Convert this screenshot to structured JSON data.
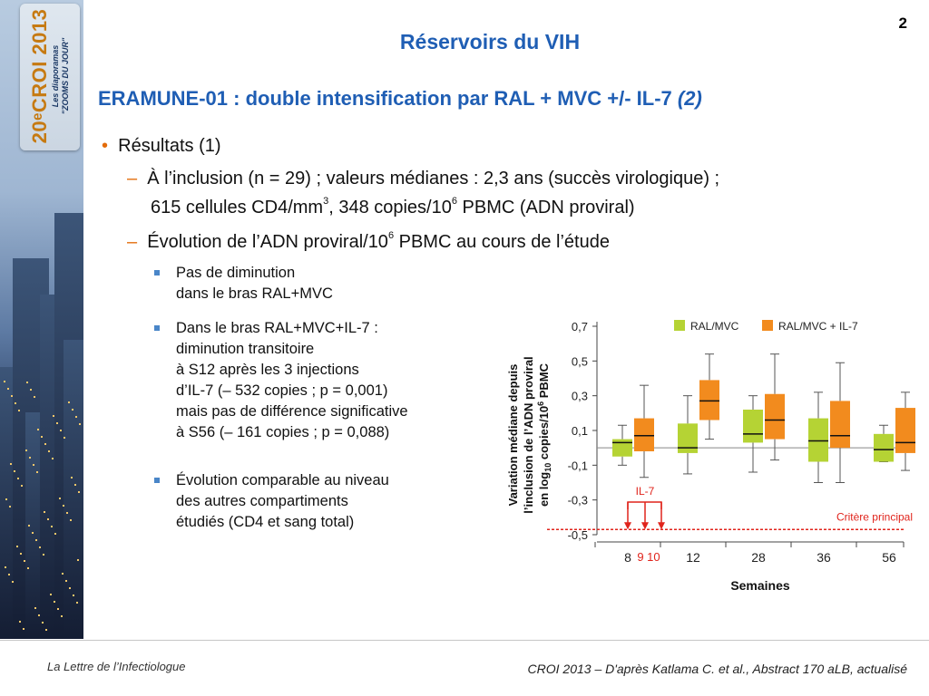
{
  "banner": {
    "line1": "20ᵉCROI 2013",
    "line2": "Les diaporamas",
    "line3": "\"ZOOMS DU JOUR\""
  },
  "slide_number": "2",
  "title": "Réservoirs du VIH",
  "subtitle": {
    "main": "ERAMUNE-01 : double intensification par RAL + MVC +/- IL-7",
    "ref": "(2)"
  },
  "bullets": {
    "level1": "Résultats (1)",
    "item1_line1": "À l’inclusion (n = 29) ; valeurs médianes : 2,3 ans (succès virologique) ;",
    "item1_line2_a": "615 cellules CD4/mm",
    "item1_line2_sup1": "3",
    "item1_line2_b": ", 348 copies/10",
    "item1_line2_sup2": "6",
    "item1_line2_c": " PBMC (ADN proviral)",
    "item2_a": "Évolution de l’ADN proviral/10",
    "item2_sup": "6",
    "item2_b": " PBMC au cours de l’étude",
    "sub1": [
      "Pas de diminution",
      "dans le bras RAL+MVC"
    ],
    "sub2": [
      "Dans le bras RAL+MVC+IL-7 :",
      "diminution transitoire",
      "à S12 après les 3 injections",
      "d’IL-7 (– 532 copies ; p = 0,001)",
      "mais pas de différence significative",
      "à S56 (– 161 copies ; p = 0,088)"
    ],
    "sub3": [
      "Évolution comparable au niveau",
      "des autres compartiments",
      "étudiés (CD4 et sang total)"
    ]
  },
  "chart_data": {
    "type": "boxplot",
    "ylabel_line1": "Variation médiane depuis",
    "ylabel_line2": "l’inclusion  de l’ADN proviral",
    "ylabel_line3_a": "en log",
    "ylabel_line3_sub": "10",
    "ylabel_line3_b": " copies/10",
    "ylabel_line3_sup": "6",
    "ylabel_line3_c": " PBMC",
    "yticks": [
      "0,7",
      "0,5",
      "0,3",
      "0,1",
      "-0,1",
      "-0,3",
      "-0,5"
    ],
    "ytick_values": [
      0.7,
      0.5,
      0.3,
      0.1,
      -0.1,
      -0.3,
      -0.5
    ],
    "ylim": [
      -0.5,
      0.7
    ],
    "xticks": [
      "8",
      "12",
      "28",
      "36",
      "56"
    ],
    "xtick_marks": [
      "9",
      "10"
    ],
    "xmark_text": "9 10",
    "xlabel": "Semaines",
    "reference_line": 0,
    "threshold_line": -0.47,
    "threshold_label": "Critère principal",
    "il7_label": "IL-7",
    "colors": {
      "RAL/MVC": "#b5d334",
      "RAL/MVC + IL-7": "#f28b1e",
      "arrow": "#e0241c"
    },
    "legend": [
      "RAL/MVC",
      "RAL/MVC + IL-7"
    ],
    "groups": [
      {
        "week": "8",
        "boxes": [
          {
            "series": "RAL/MVC",
            "whisker_low": -0.1,
            "q1": -0.05,
            "median": 0.03,
            "q3": 0.05,
            "whisker_high": 0.13
          },
          {
            "series": "RAL/MVC + IL-7",
            "whisker_low": -0.17,
            "q1": -0.02,
            "median": 0.07,
            "q3": 0.17,
            "whisker_high": 0.36
          }
        ]
      },
      {
        "week": "12",
        "boxes": [
          {
            "series": "RAL/MVC",
            "whisker_low": -0.15,
            "q1": -0.03,
            "median": 0.0,
            "q3": 0.14,
            "whisker_high": 0.3
          },
          {
            "series": "RAL/MVC + IL-7",
            "whisker_low": 0.05,
            "q1": 0.16,
            "median": 0.27,
            "q3": 0.39,
            "whisker_high": 0.54
          }
        ]
      },
      {
        "week": "28",
        "boxes": [
          {
            "series": "RAL/MVC",
            "whisker_low": -0.14,
            "q1": 0.03,
            "median": 0.08,
            "q3": 0.22,
            "whisker_high": 0.3
          },
          {
            "series": "RAL/MVC + IL-7",
            "whisker_low": -0.07,
            "q1": 0.05,
            "median": 0.16,
            "q3": 0.31,
            "whisker_high": 0.54
          }
        ]
      },
      {
        "week": "36",
        "boxes": [
          {
            "series": "RAL/MVC",
            "whisker_low": -0.2,
            "q1": -0.08,
            "median": 0.04,
            "q3": 0.17,
            "whisker_high": 0.32
          },
          {
            "series": "RAL/MVC + IL-7",
            "whisker_low": -0.2,
            "q1": 0.0,
            "median": 0.07,
            "q3": 0.27,
            "whisker_high": 0.49
          }
        ]
      },
      {
        "week": "56",
        "boxes": [
          {
            "series": "RAL/MVC",
            "whisker_low": -0.08,
            "q1": -0.08,
            "median": -0.01,
            "q3": 0.08,
            "whisker_high": 0.13
          },
          {
            "series": "RAL/MVC + IL-7",
            "whisker_low": -0.13,
            "q1": -0.03,
            "median": 0.03,
            "q3": 0.23,
            "whisker_high": 0.32
          }
        ]
      }
    ]
  },
  "footer": {
    "left": "La Lettre de l’Infectiologue",
    "right": "CROI 2013 – D'après Katlama C. et al., Abstract 170 aLB, actualisé"
  }
}
